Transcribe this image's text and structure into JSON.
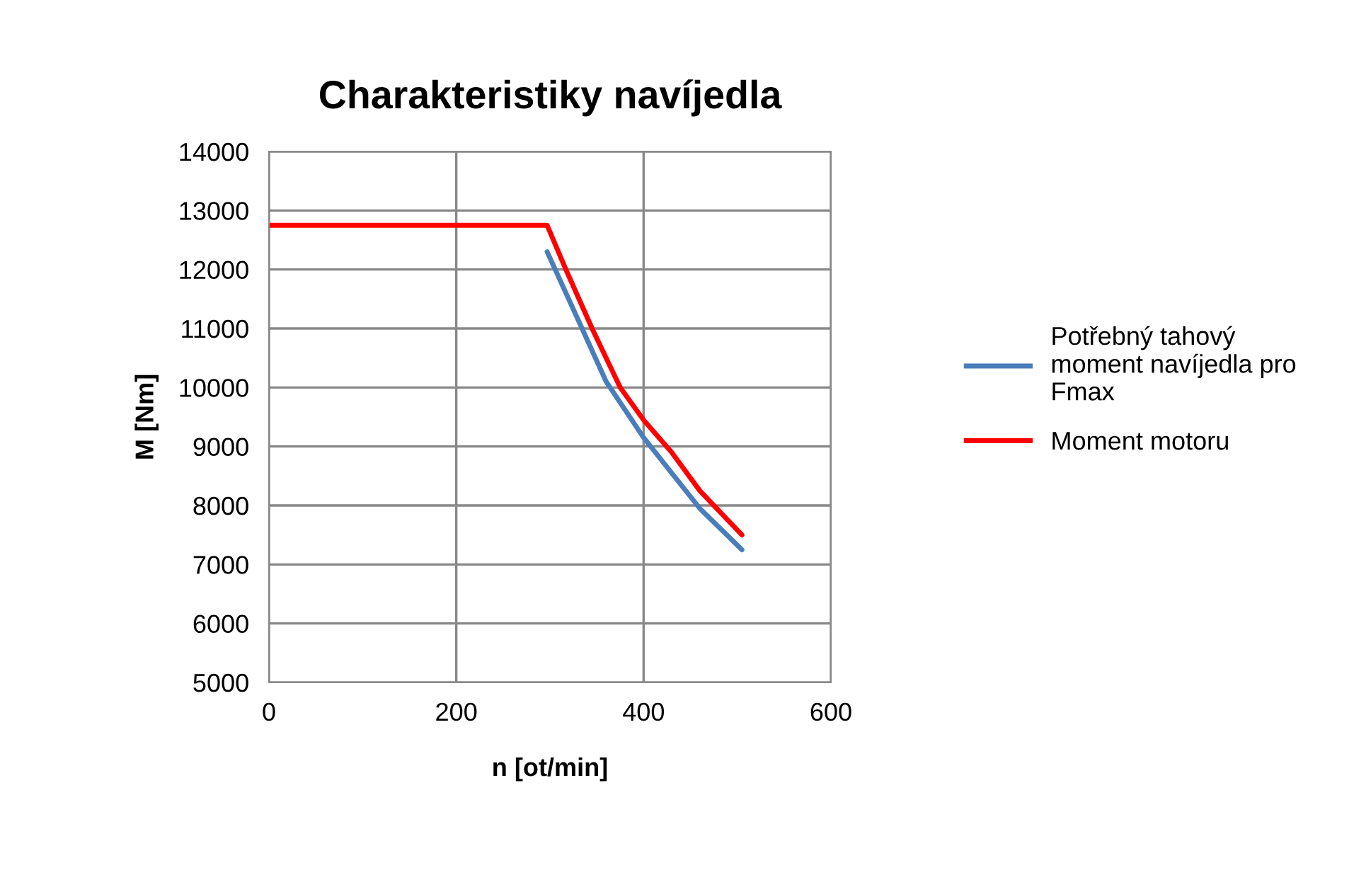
{
  "chart_data": {
    "type": "line",
    "title": "Charakteristiky navíjedla",
    "xlabel": "n [ot/min]",
    "ylabel": "M [Nm]",
    "xlim": [
      0,
      600
    ],
    "xticks": [
      0,
      200,
      400,
      600
    ],
    "ylim": [
      5000,
      14000
    ],
    "yticks": [
      5000,
      6000,
      7000,
      8000,
      9000,
      10000,
      11000,
      12000,
      13000,
      14000
    ],
    "grid": true,
    "legend": "right",
    "marker": "none",
    "line_style": "solid",
    "series": [
      {
        "name": "Potřebný tahový moment navíjedla pro Fmax",
        "color": "#4a7ebb",
        "x": [
          297,
          330,
          360,
          400,
          430,
          460,
          505
        ],
        "values": [
          12300,
          11150,
          10100,
          9150,
          8550,
          7950,
          7250
        ]
      },
      {
        "name": "Moment motoru",
        "color": "#ff0000",
        "x": [
          0,
          297,
          317,
          345,
          375,
          400,
          430,
          460,
          505
        ],
        "values": [
          12750,
          12750,
          12000,
          11000,
          10000,
          9450,
          8900,
          8250,
          7500
        ]
      }
    ]
  }
}
